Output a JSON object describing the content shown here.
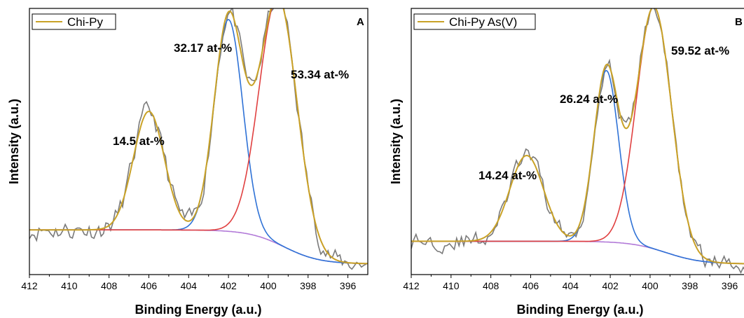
{
  "chart_data": [
    {
      "type": "line",
      "panel_label": "A",
      "xlabel": "Binding Energy (a.u.)",
      "ylabel": "Intensity (a.u.)",
      "xlim": [
        412,
        395
      ],
      "x_reversed": true,
      "x_ticks": [
        "412",
        "410",
        "408",
        "406",
        "404",
        "402",
        "400",
        "398",
        "396"
      ],
      "legend": {
        "entries": [
          "Chi-Py"
        ],
        "placement": "top-left"
      },
      "series": [
        {
          "name": "Chi-Py",
          "role": "envelope",
          "color": "#c9a227"
        }
      ],
      "components": [
        {
          "center": 406.0,
          "height": 0.47,
          "width": 0.78,
          "color": "#c9a227",
          "label": "14.5 at-%"
        },
        {
          "center": 402.0,
          "height": 0.84,
          "width": 0.72,
          "color": "#2f72d6",
          "label": "32.17 at-%"
        },
        {
          "center": 399.5,
          "height": 0.98,
          "width": 0.95,
          "color": "#e04040",
          "label": "53.34 at-%"
        }
      ],
      "background": {
        "color": "#b27ad8",
        "start": 0.155,
        "end": 0.02
      },
      "raw_color": "#7a7a7a",
      "noise_amplitude": 0.035
    },
    {
      "type": "line",
      "panel_label": "B",
      "xlabel": "Binding Energy (a.u.)",
      "ylabel": "Intensity (a.u.)",
      "xlim": [
        412,
        395
      ],
      "x_reversed": true,
      "x_ticks": [
        "412",
        "410",
        "408",
        "406",
        "404",
        "402",
        "400",
        "398",
        "396"
      ],
      "legend": {
        "entries": [
          "Chi-Py As(V)"
        ],
        "placement": "top-left"
      },
      "series": [
        {
          "name": "Chi-Py As(V)",
          "role": "envelope",
          "color": "#c9a227"
        }
      ],
      "components": [
        {
          "center": 406.2,
          "height": 0.34,
          "width": 0.85,
          "color": "#c9a227",
          "label": "14.24 at-%"
        },
        {
          "center": 402.2,
          "height": 0.68,
          "width": 0.62,
          "color": "#2f72d6",
          "label": "26.24 at-%"
        },
        {
          "center": 399.8,
          "height": 0.96,
          "width": 0.88,
          "color": "#e04040",
          "label": "59.52 at-%"
        }
      ],
      "background": {
        "color": "#b27ad8",
        "start": 0.11,
        "end": 0.02
      },
      "raw_color": "#7a7a7a",
      "noise_amplitude": 0.03
    }
  ]
}
